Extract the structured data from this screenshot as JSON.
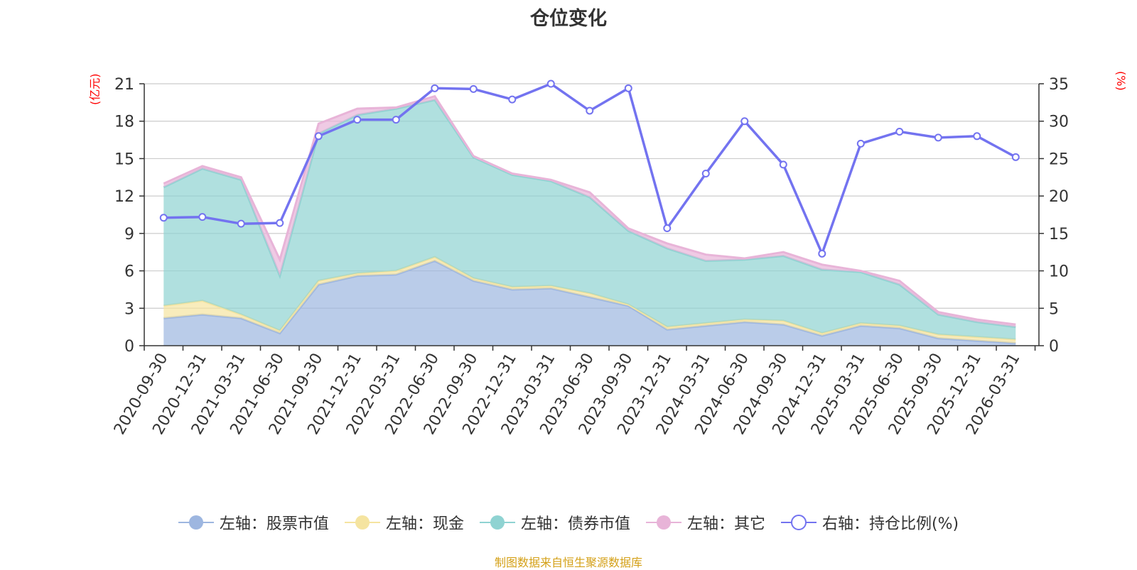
{
  "chart_data": {
    "type": "area",
    "title": "仓位变化",
    "left_axis_label": "(亿元)",
    "right_axis_label": "(%)",
    "left_ylim": [
      0,
      21
    ],
    "left_yticks": [
      0,
      3,
      6,
      9,
      12,
      15,
      18,
      21
    ],
    "right_ylim": [
      0,
      35
    ],
    "right_yticks": [
      0,
      5,
      10,
      15,
      20,
      25,
      30,
      35
    ],
    "grid": true,
    "legend_position": "bottom",
    "categories": [
      "2020-09-30",
      "2020-12-31",
      "2021-03-31",
      "2021-06-30",
      "2021-09-30",
      "2021-12-31",
      "2022-03-31",
      "2022-06-30",
      "2022-09-30",
      "2022-12-31",
      "2023-03-31",
      "2023-06-30",
      "2023-09-30",
      "2023-12-31",
      "2024-03-31",
      "2024-06-30",
      "2024-09-30",
      "2024-12-31",
      "2025-03-31",
      "2025-06-30",
      "2025-09-30",
      "2025-12-31",
      "2026-03-31"
    ],
    "series": [
      {
        "name": "左轴：股票市值",
        "axis": "left",
        "stacked": true,
        "color": "#9db6e0",
        "values": [
          2.2,
          2.5,
          2.2,
          1.0,
          4.9,
          5.6,
          5.7,
          6.8,
          5.2,
          4.5,
          4.6,
          3.9,
          3.2,
          1.3,
          1.6,
          1.9,
          1.7,
          0.8,
          1.6,
          1.4,
          0.6,
          0.4,
          0.2
        ]
      },
      {
        "name": "左轴：现金",
        "axis": "left",
        "stacked": true,
        "color": "#f5e4a0",
        "values": [
          1.0,
          1.1,
          0.3,
          0.2,
          0.3,
          0.2,
          0.3,
          0.3,
          0.2,
          0.2,
          0.2,
          0.3,
          0.1,
          0.2,
          0.2,
          0.2,
          0.3,
          0.2,
          0.2,
          0.2,
          0.3,
          0.3,
          0.3
        ]
      },
      {
        "name": "左轴：债券市值",
        "axis": "left",
        "stacked": true,
        "color": "#8fd3d2",
        "values": [
          9.5,
          10.6,
          10.8,
          4.4,
          11.8,
          12.7,
          13.0,
          12.6,
          9.7,
          9.0,
          8.4,
          7.7,
          5.9,
          6.3,
          5.0,
          4.8,
          5.2,
          5.1,
          4.1,
          3.3,
          1.6,
          1.2,
          1.0
        ]
      },
      {
        "name": "左轴：其它",
        "axis": "left",
        "stacked": true,
        "color": "#e8b4d8",
        "values": [
          0.3,
          0.2,
          0.2,
          1.3,
          0.8,
          0.5,
          0.1,
          0.3,
          0.1,
          0.1,
          0.1,
          0.4,
          0.2,
          0.4,
          0.5,
          0.1,
          0.3,
          0.4,
          0.1,
          0.3,
          0.2,
          0.2,
          0.2
        ]
      },
      {
        "name": "右轴：持仓比例(%)",
        "axis": "right",
        "type": "line",
        "color": "#7373f0",
        "values": [
          17.1,
          17.2,
          16.3,
          16.4,
          28.0,
          30.2,
          30.2,
          34.4,
          34.3,
          32.9,
          35.0,
          31.4,
          34.4,
          15.7,
          23.0,
          30.0,
          24.2,
          12.3,
          27.0,
          28.6,
          27.8,
          28.0,
          25.2
        ]
      }
    ]
  },
  "source_note": "制图数据来自恒生聚源数据库",
  "colors": {
    "title": "#333333",
    "axis_label": "#ff0000",
    "source_note": "#d4a017",
    "grid": "#cccccc",
    "axis_line": "#333333"
  }
}
